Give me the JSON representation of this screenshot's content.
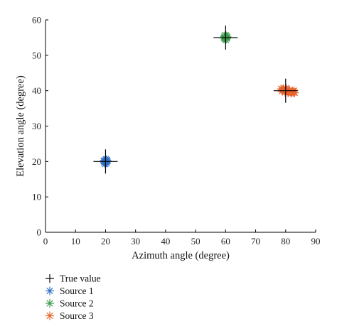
{
  "chart_data": {
    "type": "scatter",
    "title": "",
    "xlabel": "Azimuth angle (degree)",
    "ylabel": "Elevation angle (degree)",
    "xlim": [
      0,
      90
    ],
    "ylim": [
      0,
      60
    ],
    "xticks": [
      0,
      10,
      20,
      30,
      40,
      50,
      60,
      70,
      80,
      90
    ],
    "yticks": [
      0,
      10,
      20,
      30,
      40,
      50,
      60
    ],
    "grid": false,
    "legend_placement": "bottom-left, below plot",
    "series": [
      {
        "name": "True value",
        "marker": "plus",
        "color": "#000000",
        "points": [
          [
            20,
            20
          ],
          [
            60,
            55
          ],
          [
            80,
            40
          ]
        ]
      },
      {
        "name": "Source 1",
        "marker": "asterisk",
        "color": "#2e6fc2",
        "points": [
          [
            20,
            20
          ],
          [
            19.7,
            20.3
          ],
          [
            20.3,
            19.6
          ],
          [
            19.6,
            19.7
          ],
          [
            20.4,
            20.4
          ],
          [
            20.1,
            20.6
          ],
          [
            19.9,
            19.3
          ],
          [
            20.6,
            20.1
          ],
          [
            19.4,
            20.1
          ],
          [
            20.2,
            19.9
          ]
        ]
      },
      {
        "name": "Source 2",
        "marker": "asterisk",
        "color": "#3a9a4a",
        "points": [
          [
            60,
            55
          ],
          [
            59.6,
            55.3
          ],
          [
            60.4,
            54.8
          ],
          [
            59.8,
            54.6
          ],
          [
            60.2,
            55.5
          ],
          [
            60.5,
            55.2
          ],
          [
            59.5,
            54.9
          ],
          [
            60.1,
            54.4
          ],
          [
            59.9,
            55.7
          ]
        ]
      },
      {
        "name": "Source 3",
        "marker": "asterisk",
        "color": "#e8622c",
        "points": [
          [
            78.5,
            40.5
          ],
          [
            79,
            40.3
          ],
          [
            79.5,
            40.1
          ],
          [
            80,
            40
          ],
          [
            80.5,
            39.9
          ],
          [
            81,
            39.8
          ],
          [
            81.5,
            39.7
          ],
          [
            82,
            39.6
          ],
          [
            82.5,
            39.5
          ],
          [
            83,
            39.4
          ],
          [
            79.3,
            40.6
          ],
          [
            80.3,
            40.4
          ],
          [
            81.3,
            40.1
          ],
          [
            82.3,
            39.9
          ],
          [
            79.8,
            39.5
          ],
          [
            80.8,
            39.4
          ],
          [
            81.8,
            39.3
          ],
          [
            78.8,
            39.9
          ],
          [
            82.8,
            40.0
          ],
          [
            80.1,
            40.7
          ]
        ]
      }
    ]
  }
}
